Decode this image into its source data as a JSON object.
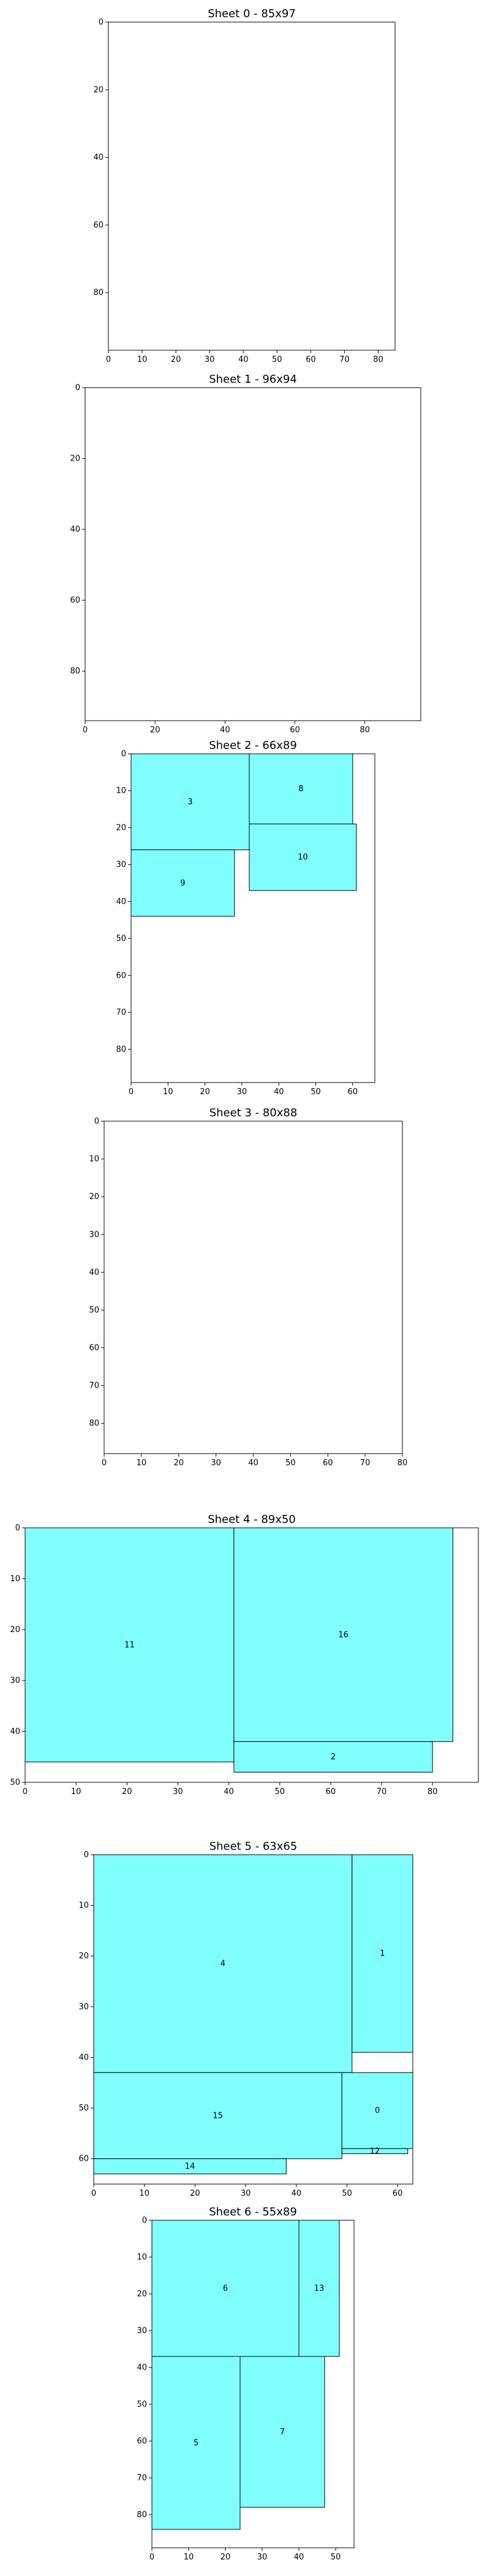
{
  "chart_data": [
    {
      "type": "rectangle-packing",
      "title": "Sheet 0 - 85x97",
      "width": 85,
      "height": 97,
      "xlim": [
        0,
        85
      ],
      "ylim": [
        97,
        0
      ],
      "xticks": [
        0,
        10,
        20,
        30,
        40,
        50,
        60,
        70,
        80
      ],
      "yticks": [
        0,
        20,
        40,
        60,
        80
      ],
      "fill_color": "#80ffff",
      "edge_color": "#000000",
      "pieces": []
    },
    {
      "type": "rectangle-packing",
      "title": "Sheet 1 - 96x94",
      "width": 96,
      "height": 94,
      "xlim": [
        0,
        96
      ],
      "ylim": [
        94,
        0
      ],
      "xticks": [
        0,
        20,
        40,
        60,
        80
      ],
      "yticks": [
        0,
        20,
        40,
        60,
        80
      ],
      "fill_color": "#80ffff",
      "edge_color": "#000000",
      "pieces": []
    },
    {
      "type": "rectangle-packing",
      "title": "Sheet 2 - 66x89",
      "width": 66,
      "height": 89,
      "xlim": [
        0,
        66
      ],
      "ylim": [
        89,
        0
      ],
      "xticks": [
        0,
        10,
        20,
        30,
        40,
        50,
        60
      ],
      "yticks": [
        0,
        10,
        20,
        30,
        40,
        50,
        60,
        70,
        80
      ],
      "fill_color": "#80ffff",
      "edge_color": "#000000",
      "pieces": [
        {
          "label": "3",
          "x": 0,
          "y": 0,
          "w": 32,
          "h": 26
        },
        {
          "label": "8",
          "x": 32,
          "y": 0,
          "w": 28,
          "h": 19
        },
        {
          "label": "9",
          "x": 0,
          "y": 26,
          "w": 28,
          "h": 18
        },
        {
          "label": "10",
          "x": 32,
          "y": 19,
          "w": 29,
          "h": 18
        }
      ]
    },
    {
      "type": "rectangle-packing",
      "title": "Sheet 3 - 80x88",
      "width": 80,
      "height": 88,
      "xlim": [
        0,
        80
      ],
      "ylim": [
        88,
        0
      ],
      "xticks": [
        0,
        10,
        20,
        30,
        40,
        50,
        60,
        70,
        80
      ],
      "yticks": [
        0,
        10,
        20,
        30,
        40,
        50,
        60,
        70,
        80
      ],
      "fill_color": "#80ffff",
      "edge_color": "#000000",
      "pieces": []
    },
    {
      "type": "rectangle-packing",
      "title": "Sheet 4 - 89x50",
      "width": 89,
      "height": 50,
      "xlim": [
        0,
        89
      ],
      "ylim": [
        50,
        0
      ],
      "xticks": [
        0,
        10,
        20,
        30,
        40,
        50,
        60,
        70,
        80
      ],
      "yticks": [
        0,
        10,
        20,
        30,
        40,
        50
      ],
      "fill_color": "#80ffff",
      "edge_color": "#000000",
      "pieces": [
        {
          "label": "11",
          "x": 0,
          "y": 0,
          "w": 41,
          "h": 46
        },
        {
          "label": "16",
          "x": 41,
          "y": 0,
          "w": 43,
          "h": 42
        },
        {
          "label": "2",
          "x": 41,
          "y": 42,
          "w": 39,
          "h": 6
        }
      ]
    },
    {
      "type": "rectangle-packing",
      "title": "Sheet 5 - 63x65",
      "width": 63,
      "height": 65,
      "xlim": [
        0,
        63
      ],
      "ylim": [
        65,
        0
      ],
      "xticks": [
        0,
        10,
        20,
        30,
        40,
        50,
        60
      ],
      "yticks": [
        0,
        10,
        20,
        30,
        40,
        50,
        60
      ],
      "fill_color": "#80ffff",
      "edge_color": "#000000",
      "pieces": [
        {
          "label": "4",
          "x": 0,
          "y": 0,
          "w": 51,
          "h": 43
        },
        {
          "label": "1",
          "x": 51,
          "y": 0,
          "w": 12,
          "h": 39
        },
        {
          "label": "15",
          "x": 0,
          "y": 43,
          "w": 49,
          "h": 17
        },
        {
          "label": "0",
          "x": 49,
          "y": 43,
          "w": 14,
          "h": 15
        },
        {
          "label": "12",
          "x": 49,
          "y": 58,
          "w": 13,
          "h": 1
        },
        {
          "label": "14",
          "x": 0,
          "y": 60,
          "w": 38,
          "h": 3
        }
      ]
    },
    {
      "type": "rectangle-packing",
      "title": "Sheet 6 - 55x89",
      "width": 55,
      "height": 89,
      "xlim": [
        0,
        55
      ],
      "ylim": [
        89,
        0
      ],
      "xticks": [
        0,
        10,
        20,
        30,
        40,
        50
      ],
      "yticks": [
        0,
        10,
        20,
        30,
        40,
        50,
        60,
        70,
        80
      ],
      "fill_color": "#80ffff",
      "edge_color": "#000000",
      "pieces": [
        {
          "label": "6",
          "x": 0,
          "y": 0,
          "w": 40,
          "h": 37
        },
        {
          "label": "13",
          "x": 40,
          "y": 0,
          "w": 11,
          "h": 37
        },
        {
          "label": "5",
          "x": 0,
          "y": 37,
          "w": 24,
          "h": 47
        },
        {
          "label": "7",
          "x": 24,
          "y": 37,
          "w": 23,
          "h": 41
        }
      ]
    }
  ]
}
